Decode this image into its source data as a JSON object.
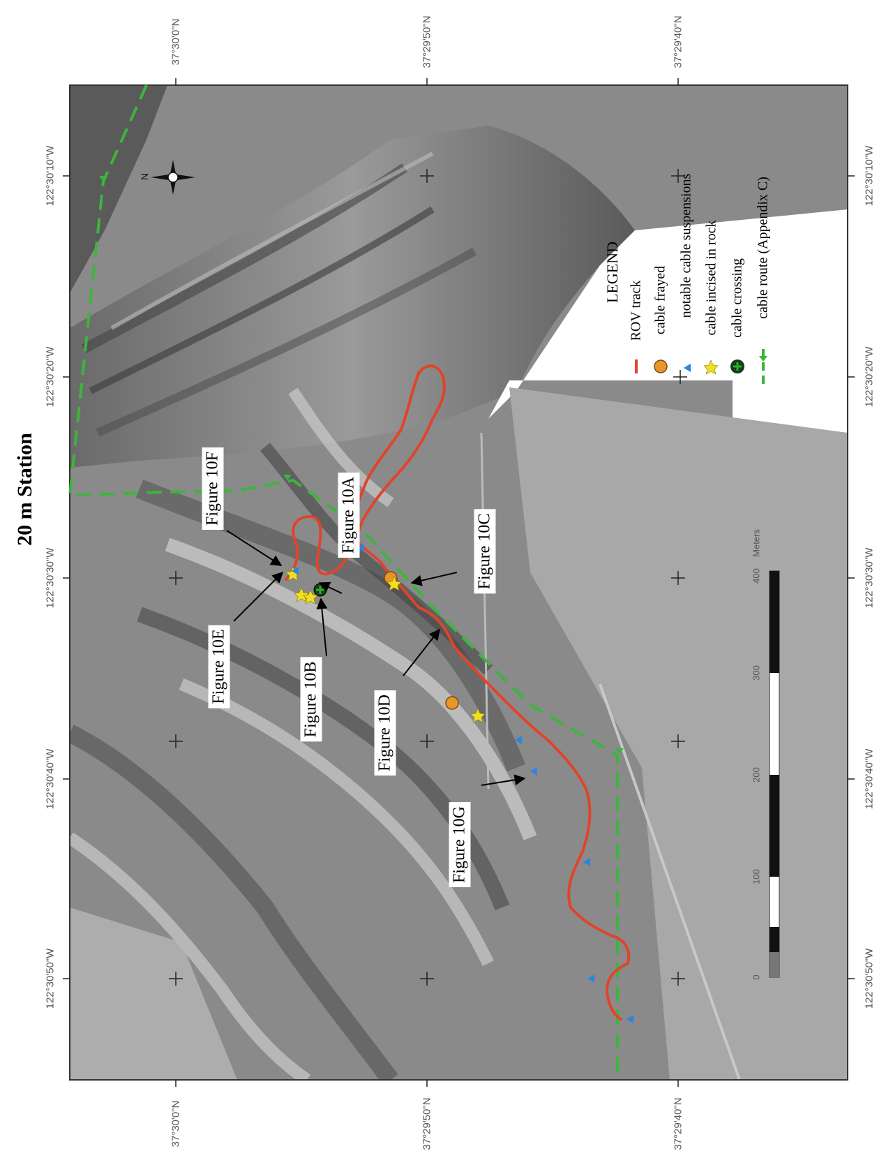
{
  "title": "20 m Station",
  "coordinates": {
    "latitude_labels": [
      "37°30'0\"N",
      "37°29'50\"N",
      "37°29'40\"N"
    ],
    "longitude_labels": [
      "122°30'50\"W",
      "122°30'40\"W",
      "122°30'30\"W",
      "122°30'20\"W",
      "122°30'10\"W"
    ]
  },
  "north_arrow": {
    "label": "N"
  },
  "figure_callouts": [
    "Figure 10F",
    "Figure 10E",
    "Figure 10A",
    "Figure 10B",
    "Figure 10C",
    "Figure 10D",
    "Figure 10G"
  ],
  "legend": {
    "title": "LEGEND",
    "items": [
      {
        "label": "ROV track",
        "symbol": "red-line",
        "color": "#e0442a"
      },
      {
        "label": "cable frayed",
        "symbol": "orange-circle",
        "color": "#e8952a"
      },
      {
        "label": "notable cable suspensions",
        "symbol": "blue-triangle",
        "color": "#2a86e0"
      },
      {
        "label": "cable incised in rock",
        "symbol": "yellow-star",
        "color": "#f0e020"
      },
      {
        "label": "cable crossing",
        "symbol": "green-cross-circle",
        "color": "#2ab02a"
      },
      {
        "label": "cable route (Appendix C)",
        "symbol": "green-dashed-line",
        "color": "#3db53d"
      }
    ]
  },
  "scale_bar": {
    "ticks": [
      "0",
      "100",
      "200",
      "300",
      "400"
    ],
    "unit": "Meters"
  },
  "colors": {
    "rov_track": "#e0442a",
    "cable_route": "#3db53d",
    "frayed": "#e8952a",
    "suspension": "#2a86e0",
    "incised": "#f0e020",
    "crossing": "#2ab02a"
  }
}
